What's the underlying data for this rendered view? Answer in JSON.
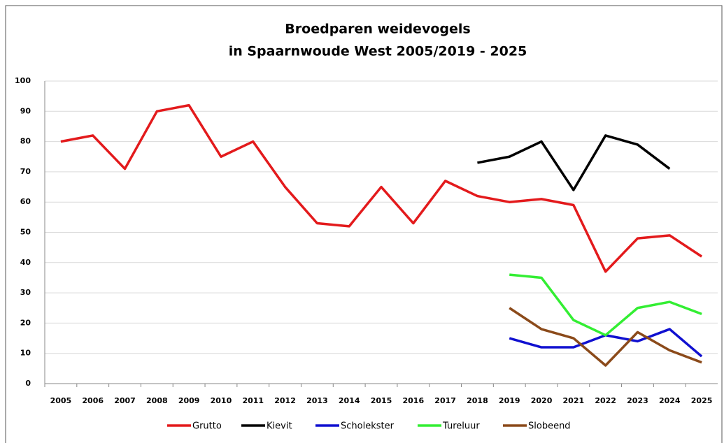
{
  "chart_data": {
    "type": "line",
    "title": [
      "Broedparen weidevogels",
      "in Spaarnwoude West 2005/2019 - 2025"
    ],
    "categories": [
      "2005",
      "2006",
      "2007",
      "2008",
      "2009",
      "2010",
      "2011",
      "2012",
      "2013",
      "2014",
      "2015",
      "2016",
      "2017",
      "2018",
      "2019",
      "2020",
      "2021",
      "2022",
      "2023",
      "2024",
      "2025"
    ],
    "series": [
      {
        "name": "Grutto",
        "color": "#e31a1c",
        "values": [
          80,
          82,
          71,
          90,
          92,
          75,
          80,
          65,
          53,
          52,
          65,
          53,
          67,
          62,
          60,
          61,
          59,
          37,
          48,
          49,
          42
        ]
      },
      {
        "name": "Kievit",
        "color": "#000000",
        "values": [
          null,
          null,
          null,
          null,
          null,
          null,
          null,
          null,
          null,
          null,
          null,
          null,
          null,
          73,
          75,
          80,
          64,
          82,
          79,
          71,
          null
        ]
      },
      {
        "name": "Scholekster",
        "color": "#1010d0",
        "values": [
          null,
          null,
          null,
          null,
          null,
          null,
          null,
          null,
          null,
          null,
          null,
          null,
          null,
          null,
          15,
          12,
          12,
          16,
          14,
          18,
          9
        ]
      },
      {
        "name": "Tureluur",
        "color": "#33ee33",
        "values": [
          null,
          null,
          null,
          null,
          null,
          null,
          null,
          null,
          null,
          null,
          null,
          null,
          null,
          null,
          36,
          35,
          21,
          16,
          25,
          27,
          23
        ]
      },
      {
        "name": "Slobeend",
        "color": "#8b4a1a",
        "values": [
          null,
          null,
          null,
          null,
          null,
          null,
          null,
          null,
          null,
          null,
          null,
          null,
          null,
          null,
          25,
          18,
          15,
          6,
          17,
          11,
          7
        ]
      }
    ],
    "ylim": [
      0,
      100
    ],
    "yticks": [
      0,
      10,
      20,
      30,
      40,
      50,
      60,
      70,
      80,
      90,
      100
    ],
    "grid": true,
    "legend": "bottom"
  }
}
